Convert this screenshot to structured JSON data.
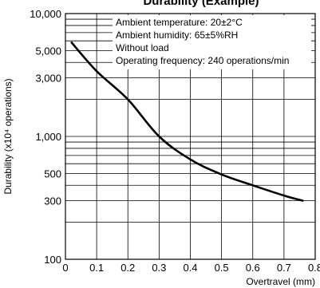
{
  "chart_data": {
    "type": "line",
    "title": "Durability (Example)",
    "xlabel": "Overtravel (mm)",
    "ylabel": "Durability (x10⁴ operations)",
    "xlim": [
      0,
      0.8
    ],
    "ylim": [
      100,
      10000
    ],
    "y_scale": "log",
    "grid": true,
    "x_ticks": [
      "0",
      "0.1",
      "0.2",
      "0.3",
      "0.4",
      "0.5",
      "0.6",
      "0.7",
      "0.8"
    ],
    "y_ticks": [
      {
        "value": 10000,
        "label": "10,000"
      },
      {
        "value": 5000,
        "label": "5,000"
      },
      {
        "value": 3000,
        "label": "3,000"
      },
      {
        "value": 1000,
        "label": "1,000"
      },
      {
        "value": 500,
        "label": "500"
      },
      {
        "value": 300,
        "label": "300"
      },
      {
        "value": 100,
        "label": "100"
      }
    ],
    "series": [
      {
        "x": [
          0.02,
          0.1,
          0.2,
          0.3,
          0.4,
          0.5,
          0.6,
          0.7,
          0.76
        ],
        "y": [
          5800,
          3400,
          2000,
          1000,
          650,
          490,
          400,
          330,
          300
        ]
      }
    ],
    "annotations": [
      "Ambient temperature: 20±2°C",
      "Ambient humidity: 65±5%RH",
      "Without load",
      "Operating frequency: 240 operations/min"
    ]
  }
}
